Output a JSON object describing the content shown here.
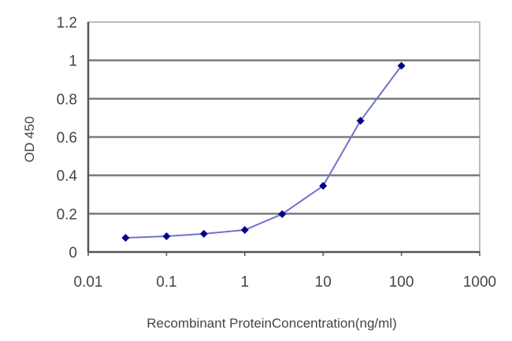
{
  "chart_data": {
    "type": "line",
    "title": "",
    "xlabel": "Recombinant ProteinConcentration(ng/ml)",
    "ylabel": "OD 450",
    "xscale": "log",
    "xlim": [
      0.01,
      1000
    ],
    "ylim": [
      0,
      1.2
    ],
    "x_ticks": [
      "0.01",
      "0.1",
      "1",
      "10",
      "100",
      "1000"
    ],
    "y_ticks": [
      "0",
      "0.2",
      "0.4",
      "0.6",
      "0.8",
      "1",
      "1.2"
    ],
    "grid": "horizontal",
    "legend": null,
    "series": [
      {
        "name": "OD 450",
        "color": "#00008b",
        "line_color": "#6f74c9",
        "marker": "diamond",
        "x": [
          0.03,
          0.1,
          0.3,
          1,
          3,
          10,
          30,
          100
        ],
        "y": [
          0.074,
          0.082,
          0.095,
          0.115,
          0.198,
          0.345,
          0.685,
          0.972
        ]
      }
    ]
  },
  "colors": {
    "gridline": "#7a7a7a",
    "axis": "#555555",
    "frame": "#bdbdbd",
    "marker": "#00008b",
    "line": "#6f74c9"
  }
}
